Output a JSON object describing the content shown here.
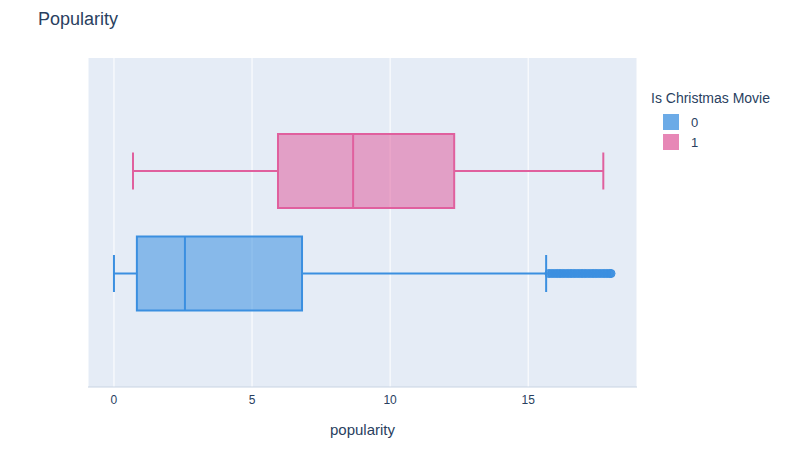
{
  "chart_data": {
    "type": "box",
    "title": "Popularity",
    "x_label": "popularity",
    "legend_title": "Is Christmas Movie",
    "orientation": "horizontal",
    "xlim": [
      -0.94,
      18.94
    ],
    "xticks": [
      0,
      5,
      10,
      15
    ],
    "grid": true,
    "tick_labels": "x",
    "legend": "right",
    "series": [
      {
        "name": "0",
        "color": "#3b8fe0",
        "min": 0,
        "q1": 0.83,
        "median": 2.57,
        "q3": 6.81,
        "max": 15.65,
        "outliers": [
          15.75,
          15.85,
          15.95,
          16.05,
          16.15,
          16.25,
          16.35,
          16.45,
          16.55,
          16.65,
          16.75,
          16.85,
          16.95,
          17.05,
          17.15,
          17.25,
          17.35,
          17.45,
          17.55,
          17.65,
          17.75,
          17.85,
          17.95,
          18.0
        ]
      },
      {
        "name": "1",
        "color": "#e0609e",
        "min": 0.69,
        "q1": 5.94,
        "median": 8.66,
        "q3": 12.32,
        "max": 17.72
      }
    ]
  }
}
